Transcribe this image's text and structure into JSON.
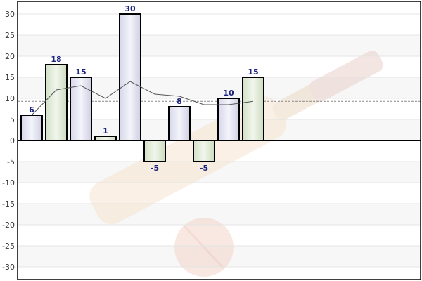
{
  "chart_data": {
    "type": "bar",
    "title": "",
    "xlabel": "",
    "ylabel": "",
    "categories": [
      "",
      "",
      "",
      "",
      "",
      "",
      "",
      "",
      "",
      ""
    ],
    "values": [
      6,
      18,
      15,
      1,
      30,
      -5,
      8,
      -5,
      10,
      15
    ],
    "data_labels": [
      "6",
      "18",
      "15",
      "1",
      "30",
      "-5",
      "8",
      "-5",
      "10",
      "15"
    ],
    "trend_line": [
      6,
      12,
      13,
      10,
      14,
      11,
      10.5,
      8.5,
      8.5,
      9.3
    ],
    "average_line": 9.3,
    "ylim": [
      -33,
      33
    ],
    "yticks": [
      -30,
      -25,
      -20,
      -15,
      -10,
      -5,
      0,
      5,
      10,
      15,
      20,
      25,
      30
    ],
    "ytick_labels": [
      "-30",
      "-25",
      "-20",
      "-15",
      "-10",
      "-5",
      "0",
      "5",
      "10",
      "15",
      "20",
      "25",
      "30"
    ],
    "grid": true,
    "legend": "none",
    "colors": {
      "bar_odd_fill": "#e8e8f4",
      "bar_even_fill": "#e5eddd",
      "bar_stroke": "#000000",
      "trend_line": "#555555",
      "average_line": "#888888",
      "zero_line": "#000000",
      "band_light": "#f7f7f7",
      "data_label": "#1a237e"
    }
  },
  "watermark": {
    "description": "cricket bat and ball",
    "bat_color": "#f5e0c8",
    "ball_color": "#f4d0c4"
  }
}
